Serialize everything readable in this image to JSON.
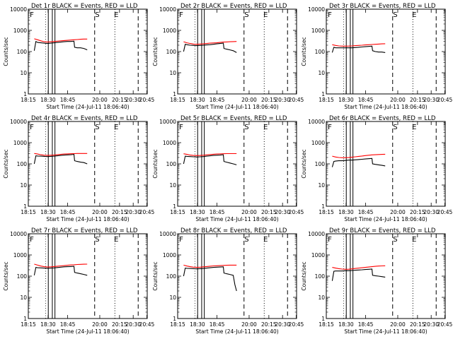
{
  "chart_data": {
    "type": "line",
    "layout": "3x3 grid of panels",
    "yscale": "log",
    "ylim": [
      1,
      10000
    ],
    "ylabel": "Counts/sec",
    "xlabel": "Start Time (24-Jul-11 18:06:40)",
    "x_tick_labels": [
      "18:15",
      "18:30",
      "18:45",
      "20:00",
      "20:15",
      "20:30",
      "20:45"
    ],
    "y_tick_labels": [
      "1",
      "10",
      "100",
      "1000",
      "10000"
    ],
    "colors": {
      "events": "#000000",
      "lld": "#ff0000"
    },
    "panels": [
      {
        "title": "Det 1r  BLACK = Events, RED = LLD",
        "markers": [
          "F",
          "S",
          "E"
        ],
        "series": [
          {
            "name": "Events",
            "x": [
              0,
              0.5,
              1,
              2,
              3,
              4,
              5,
              6,
              7,
              8,
              9,
              10,
              11,
              12,
              12.2,
              13,
              14,
              15,
              16
            ],
            "y": [
              110,
              300,
              270,
              260,
              250,
              240,
              250,
              260,
              270,
              280,
              290,
              300,
              300,
              310,
              160,
              150,
              150,
              140,
              120
            ]
          },
          {
            "name": "LLD",
            "x": [
              0,
              1,
              2,
              3,
              4,
              5,
              6,
              7,
              8,
              9,
              10,
              11,
              12,
              13,
              14,
              15,
              16
            ],
            "y": [
              400,
              360,
              320,
              290,
              280,
              290,
              300,
              310,
              320,
              330,
              340,
              350,
              360,
              370,
              380,
              390,
              390
            ]
          }
        ]
      },
      {
        "title": "Det 2r  BLACK = Events, RED = LLD",
        "markers": [
          "F",
          "S",
          "E"
        ],
        "series": [
          {
            "name": "Events",
            "x": [
              0,
              0.5,
              1,
              2,
              3,
              4,
              5,
              6,
              7,
              8,
              9,
              10,
              11,
              12,
              12.2,
              13,
              14,
              15,
              16
            ],
            "y": [
              100,
              220,
              210,
              200,
              195,
              190,
              195,
              200,
              205,
              210,
              220,
              230,
              240,
              250,
              140,
              130,
              120,
              110,
              90
            ]
          },
          {
            "name": "LLD",
            "x": [
              0,
              1,
              2,
              3,
              4,
              5,
              6,
              7,
              8,
              9,
              10,
              11,
              12,
              13,
              14,
              15,
              16
            ],
            "y": [
              290,
              260,
              240,
              225,
              220,
              225,
              230,
              240,
              250,
              255,
              260,
              270,
              280,
              285,
              290,
              295,
              300
            ]
          }
        ]
      },
      {
        "title": "Det 3r  BLACK = Events, RED = LLD",
        "markers": [
          "F",
          "S",
          "E"
        ],
        "series": [
          {
            "name": "Events",
            "x": [
              0,
              0.5,
              1,
              2,
              3,
              4,
              5,
              6,
              7,
              8,
              9,
              10,
              11,
              12,
              12.2,
              13,
              14,
              15,
              16
            ],
            "y": [
              90,
              160,
              150,
              150,
              150,
              150,
              150,
              150,
              155,
              160,
              165,
              170,
              175,
              180,
              110,
              100,
              95,
              95,
              90
            ]
          },
          {
            "name": "LLD",
            "x": [
              0,
              1,
              2,
              3,
              4,
              5,
              6,
              7,
              8,
              9,
              10,
              11,
              12,
              13,
              14,
              15,
              16
            ],
            "y": [
              210,
              195,
              185,
              180,
              180,
              182,
              185,
              190,
              195,
              200,
              205,
              210,
              215,
              220,
              225,
              230,
              235
            ]
          }
        ]
      },
      {
        "title": "Det 4r  BLACK = Events, RED = LLD",
        "markers": [
          "F",
          "S",
          "E"
        ],
        "series": [
          {
            "name": "Events",
            "x": [
              0,
              0.5,
              1,
              2,
              3,
              4,
              5,
              6,
              7,
              8,
              9,
              10,
              11,
              12,
              12.2,
              13,
              14,
              15,
              16
            ],
            "y": [
              100,
              240,
              235,
              230,
              225,
              220,
              225,
              230,
              240,
              250,
              260,
              265,
              270,
              280,
              140,
              130,
              120,
              115,
              100
            ]
          },
          {
            "name": "LLD",
            "x": [
              0,
              1,
              2,
              3,
              4,
              5,
              6,
              7,
              8,
              9,
              10,
              11,
              12,
              13,
              14,
              15,
              16
            ],
            "y": [
              310,
              290,
              270,
              255,
              250,
              255,
              260,
              270,
              280,
              290,
              295,
              300,
              305,
              310,
              310,
              310,
              310
            ]
          }
        ]
      },
      {
        "title": "Det 5r  BLACK = Events, RED = LLD",
        "markers": [
          "F",
          "S",
          "E"
        ],
        "series": [
          {
            "name": "Events",
            "x": [
              0,
              0.5,
              1,
              2,
              3,
              4,
              5,
              6,
              7,
              8,
              9,
              10,
              11,
              12,
              12.2,
              13,
              14,
              15,
              16
            ],
            "y": [
              100,
              230,
              225,
              220,
              215,
              210,
              215,
              220,
              230,
              240,
              250,
              255,
              260,
              270,
              130,
              120,
              110,
              100,
              90
            ]
          },
          {
            "name": "LLD",
            "x": [
              0,
              1,
              2,
              3,
              4,
              5,
              6,
              7,
              8,
              9,
              10,
              11,
              12,
              13,
              14,
              15,
              16
            ],
            "y": [
              300,
              280,
              260,
              250,
              245,
              250,
              255,
              265,
              275,
              285,
              290,
              295,
              300,
              305,
              305,
              305,
              305
            ]
          }
        ]
      },
      {
        "title": "Det 6r  BLACK = Events, RED = LLD",
        "markers": [
          "F",
          "S",
          "E"
        ],
        "series": [
          {
            "name": "Events",
            "x": [
              0,
              0.5,
              1,
              2,
              3,
              4,
              5,
              6,
              7,
              8,
              9,
              10,
              11,
              12,
              12.2,
              13,
              14,
              15,
              16
            ],
            "y": [
              70,
              130,
              135,
              140,
              140,
              145,
              150,
              150,
              155,
              160,
              165,
              170,
              175,
              180,
              100,
              95,
              90,
              85,
              80
            ]
          },
          {
            "name": "LLD",
            "x": [
              0,
              1,
              2,
              3,
              4,
              5,
              6,
              7,
              8,
              9,
              10,
              11,
              12,
              13,
              14,
              15,
              16
            ],
            "y": [
              230,
              210,
              200,
              195,
              195,
              198,
              205,
              215,
              225,
              235,
              245,
              255,
              265,
              270,
              275,
              280,
              285
            ]
          }
        ]
      },
      {
        "title": "Det 7r  BLACK = Events, RED = LLD",
        "markers": [
          "F",
          "S",
          "E"
        ],
        "series": [
          {
            "name": "Events",
            "x": [
              0,
              0.5,
              1,
              2,
              3,
              4,
              5,
              6,
              7,
              8,
              9,
              10,
              11,
              12,
              12.2,
              13,
              14,
              15,
              16
            ],
            "y": [
              110,
              260,
              250,
              245,
              240,
              235,
              240,
              245,
              255,
              265,
              275,
              280,
              285,
              290,
              150,
              140,
              130,
              120,
              110
            ]
          },
          {
            "name": "LLD",
            "x": [
              0,
              1,
              2,
              3,
              4,
              5,
              6,
              7,
              8,
              9,
              10,
              11,
              12,
              13,
              14,
              15,
              16
            ],
            "y": [
              370,
              330,
              300,
              280,
              270,
              275,
              285,
              295,
              305,
              315,
              325,
              335,
              345,
              355,
              360,
              365,
              370
            ]
          }
        ]
      },
      {
        "title": "Det 8r  BLACK = Events, RED = LLD",
        "markers": [
          "F",
          "S",
          "E"
        ],
        "series": [
          {
            "name": "Events",
            "x": [
              0,
              0.5,
              1,
              2,
              3,
              4,
              5,
              6,
              7,
              8,
              9,
              10,
              11,
              12,
              12.2,
              13,
              14,
              15,
              15.5,
              16
            ],
            "y": [
              100,
              240,
              235,
              230,
              225,
              220,
              225,
              230,
              240,
              250,
              260,
              265,
              270,
              275,
              140,
              130,
              120,
              110,
              40,
              20
            ]
          },
          {
            "name": "LLD",
            "x": [
              0,
              1,
              2,
              3,
              4,
              5,
              6,
              7,
              8,
              9,
              10,
              11,
              12,
              13,
              14,
              15,
              16
            ],
            "y": [
              330,
              300,
              280,
              265,
              260,
              265,
              275,
              285,
              295,
              305,
              310,
              315,
              320,
              325,
              330,
              330,
              330
            ]
          }
        ]
      },
      {
        "title": "Det 9r  BLACK = Events, RED = LLD",
        "markers": [
          "F",
          "S",
          "E"
        ],
        "series": [
          {
            "name": "Events",
            "x": [
              0,
              0.5,
              1,
              2,
              3,
              4,
              5,
              6,
              7,
              8,
              9,
              10,
              11,
              12,
              12.2,
              13,
              14,
              15,
              16
            ],
            "y": [
              60,
              170,
              175,
              175,
              175,
              180,
              180,
              185,
              190,
              195,
              200,
              205,
              210,
              215,
              110,
              105,
              100,
              95,
              90
            ]
          },
          {
            "name": "LLD",
            "x": [
              0,
              1,
              2,
              3,
              4,
              5,
              6,
              7,
              8,
              9,
              10,
              11,
              12,
              13,
              14,
              15,
              16
            ],
            "y": [
              260,
              240,
              225,
              215,
              210,
              212,
              220,
              230,
              240,
              250,
              260,
              270,
              280,
              290,
              300,
              305,
              310
            ]
          }
        ]
      }
    ]
  }
}
